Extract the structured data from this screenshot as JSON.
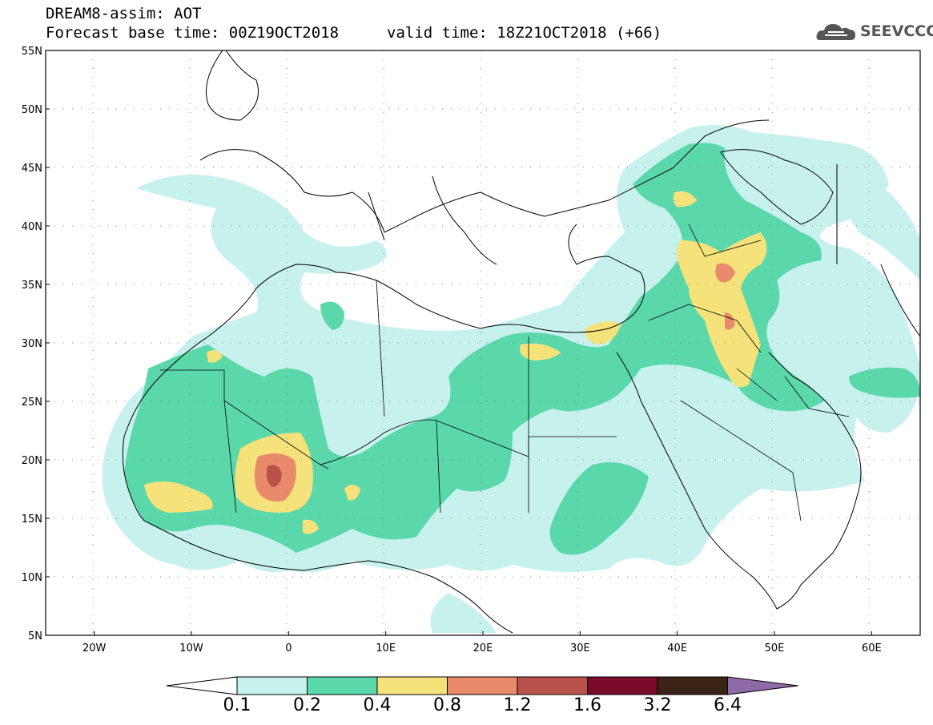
{
  "title": {
    "line1": "DREAM8-assim: AOT",
    "line2": "Forecast base time: 00Z19OCT2018",
    "valid": "valid time: 18Z21OCT2018 (+66)"
  },
  "logo": {
    "text": "SEEVCCC",
    "icon": "cloud-logo-icon"
  },
  "map": {
    "lat_ticks": [
      "55N",
      "50N",
      "45N",
      "40N",
      "35N",
      "30N",
      "25N",
      "20N",
      "15N",
      "10N",
      "5N"
    ],
    "lon_ticks": [
      "20W",
      "10W",
      "0",
      "10E",
      "20E",
      "30E",
      "40E",
      "50E",
      "60E"
    ],
    "lon_range": [
      -25,
      65
    ],
    "lat_range": [
      5,
      55
    ]
  },
  "legend": {
    "levels": [
      "0.1",
      "0.2",
      "0.4",
      "0.8",
      "1.2",
      "1.6",
      "3.2",
      "6.4"
    ],
    "colors": [
      "#ffffff",
      "#c6f1ec",
      "#5ad8aa",
      "#f5e27a",
      "#e98a6a",
      "#b8524a",
      "#7a0a2a",
      "#3b2416",
      "#8e6aa8"
    ]
  },
  "colors": {
    "aot_01": "#c6f1ec",
    "aot_02": "#5ad8aa",
    "aot_04": "#f5e27a",
    "aot_08": "#e98a6a",
    "aot_12": "#b8524a"
  }
}
